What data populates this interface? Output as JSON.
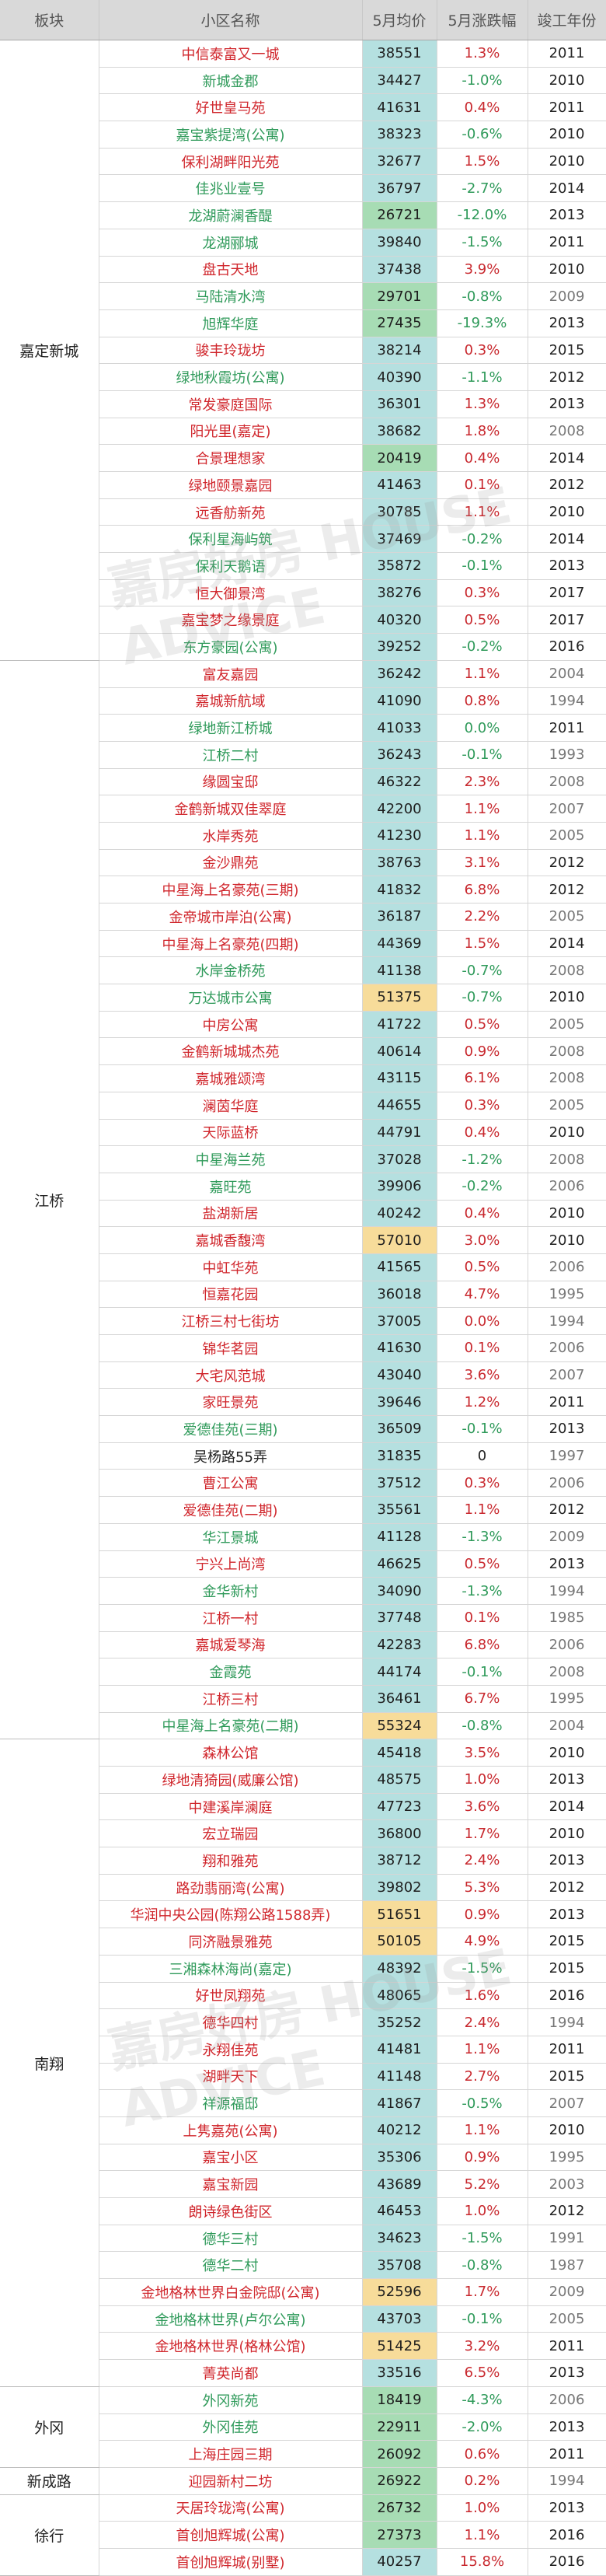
{
  "table": {
    "headers": [
      "板块",
      "小区名称",
      "5月均价",
      "5月涨跌幅",
      "竣工年份"
    ],
    "blocks": [
      {
        "name": "嘉定新城",
        "rows": [
          {
            "name": "中信泰富又一城",
            "price": "38551",
            "change": "1.3%",
            "year": "2011"
          },
          {
            "name": "新城金郡",
            "price": "34427",
            "change": "-1.0%",
            "year": "2010"
          },
          {
            "name": "好世皇马苑",
            "price": "41631",
            "change": "0.4%",
            "year": "2011"
          },
          {
            "name": "嘉宝紫提湾(公寓)",
            "price": "38323",
            "change": "-0.6%",
            "year": "2010"
          },
          {
            "name": "保利湖畔阳光苑",
            "price": "32677",
            "change": "1.5%",
            "year": "2010"
          },
          {
            "name": "佳兆业壹号",
            "price": "36797",
            "change": "-2.7%",
            "year": "2014"
          },
          {
            "name": "龙湖蔚澜香醍",
            "price": "26721",
            "change": "-12.0%",
            "year": "2013"
          },
          {
            "name": "龙湖郦城",
            "price": "39840",
            "change": "-1.5%",
            "year": "2011"
          },
          {
            "name": "盘古天地",
            "price": "37438",
            "change": "3.9%",
            "year": "2010"
          },
          {
            "name": "马陆清水湾",
            "price": "29701",
            "change": "-0.8%",
            "year": "2009"
          },
          {
            "name": "旭辉华庭",
            "price": "27435",
            "change": "-19.3%",
            "year": "2013"
          },
          {
            "name": "骏丰玲珑坊",
            "price": "38214",
            "change": "0.3%",
            "year": "2015"
          },
          {
            "name": "绿地秋霞坊(公寓)",
            "price": "40390",
            "change": "-1.1%",
            "year": "2012"
          },
          {
            "name": "常发豪庭国际",
            "price": "36301",
            "change": "1.3%",
            "year": "2013"
          },
          {
            "name": "阳光里(嘉定)",
            "price": "38682",
            "change": "1.8%",
            "year": "2008"
          },
          {
            "name": "合景理想家",
            "price": "20419",
            "change": "0.4%",
            "year": "2014"
          },
          {
            "name": "绿地颐景嘉园",
            "price": "41463",
            "change": "0.1%",
            "year": "2012"
          },
          {
            "name": "远香舫新苑",
            "price": "30785",
            "change": "1.1%",
            "year": "2010"
          },
          {
            "name": "保利星海屿筑",
            "price": "37469",
            "change": "-0.2%",
            "year": "2014"
          },
          {
            "name": "保利天鹅语",
            "price": "35872",
            "change": "-0.1%",
            "year": "2013"
          },
          {
            "name": "恒大御景湾",
            "price": "38276",
            "change": "0.3%",
            "year": "2017"
          },
          {
            "name": "嘉宝梦之缘景庭",
            "price": "40320",
            "change": "0.5%",
            "year": "2017"
          },
          {
            "name": "东方豪园(公寓)",
            "price": "39252",
            "change": "-0.2%",
            "year": "2016"
          }
        ]
      },
      {
        "name": "江桥",
        "rows": [
          {
            "name": "富友嘉园",
            "price": "36242",
            "change": "1.1%",
            "year": "2004"
          },
          {
            "name": "嘉城新航域",
            "price": "41090",
            "change": "0.8%",
            "year": "1994"
          },
          {
            "name": "绿地新江桥城",
            "price": "41033",
            "change": "0.0%",
            "year": "2011"
          },
          {
            "name": "江桥二村",
            "price": "36243",
            "change": "-0.1%",
            "year": "1993"
          },
          {
            "name": "缘圆宝邸",
            "price": "46322",
            "change": "2.3%",
            "year": "2008"
          },
          {
            "name": "金鹤新城双佳翠庭",
            "price": "42200",
            "change": "1.1%",
            "year": "2007"
          },
          {
            "name": "水岸秀苑",
            "price": "41230",
            "change": "1.1%",
            "year": "2005"
          },
          {
            "name": "金沙鼎苑",
            "price": "38763",
            "change": "3.1%",
            "year": "2012"
          },
          {
            "name": "中星海上名豪苑(三期)",
            "price": "41832",
            "change": "6.8%",
            "year": "2012"
          },
          {
            "name": "金帝城市岸泊(公寓)",
            "price": "36187",
            "change": "2.2%",
            "year": "2005"
          },
          {
            "name": "中星海上名豪苑(四期)",
            "price": "44369",
            "change": "1.5%",
            "year": "2014"
          },
          {
            "name": "水岸金桥苑",
            "price": "41138",
            "change": "-0.7%",
            "year": "2008"
          },
          {
            "name": "万达城市公寓",
            "price": "51375",
            "change": "-0.7%",
            "year": "2010"
          },
          {
            "name": "中房公寓",
            "price": "41722",
            "change": "0.5%",
            "year": "2005"
          },
          {
            "name": "金鹤新城城杰苑",
            "price": "40614",
            "change": "0.9%",
            "year": "2008"
          },
          {
            "name": "嘉城雅颂湾",
            "price": "43115",
            "change": "6.1%",
            "year": "2008"
          },
          {
            "name": "澜茵华庭",
            "price": "44655",
            "change": "0.3%",
            "year": "2005"
          },
          {
            "name": "天际蓝桥",
            "price": "44791",
            "change": "0.4%",
            "year": "2010"
          },
          {
            "name": "中星海兰苑",
            "price": "37028",
            "change": "-1.2%",
            "year": "2008"
          },
          {
            "name": "嘉旺苑",
            "price": "39906",
            "change": "-0.2%",
            "year": "2006"
          },
          {
            "name": "盐湖新居",
            "price": "40242",
            "change": "0.4%",
            "year": "2010"
          },
          {
            "name": "嘉城香馥湾",
            "price": "57010",
            "change": "3.0%",
            "year": "2010"
          },
          {
            "name": "中虹华苑",
            "price": "41565",
            "change": "0.5%",
            "year": "2006"
          },
          {
            "name": "恒嘉花园",
            "price": "36018",
            "change": "4.7%",
            "year": "1995"
          },
          {
            "name": "江桥三村七街坊",
            "price": "37005",
            "change": "0.0%",
            "year": "1994"
          },
          {
            "name": "锦华茗园",
            "price": "41630",
            "change": "0.1%",
            "year": "2006"
          },
          {
            "name": "大宅风范城",
            "price": "43040",
            "change": "3.6%",
            "year": "2007"
          },
          {
            "name": "家旺景苑",
            "price": "39646",
            "change": "1.2%",
            "year": "2011"
          },
          {
            "name": "爱德佳苑(三期)",
            "price": "36509",
            "change": "-0.1%",
            "year": "2013"
          },
          {
            "name": "吴杨路55弄",
            "price": "31835",
            "change": "0",
            "year": "1997"
          },
          {
            "name": "曹江公寓",
            "price": "37512",
            "change": "0.3%",
            "year": "2006"
          },
          {
            "name": "爱德佳苑(二期)",
            "price": "35561",
            "change": "1.1%",
            "year": "2012"
          },
          {
            "name": "华江景城",
            "price": "41128",
            "change": "-1.3%",
            "year": "2009"
          },
          {
            "name": "宁兴上尚湾",
            "price": "46625",
            "change": "0.5%",
            "year": "2013"
          },
          {
            "name": "金华新村",
            "price": "34090",
            "change": "-1.3%",
            "year": "1994"
          },
          {
            "name": "江桥一村",
            "price": "37748",
            "change": "0.1%",
            "year": "1985"
          },
          {
            "name": "嘉城爱琴海",
            "price": "42283",
            "change": "6.8%",
            "year": "2006"
          },
          {
            "name": "金霞苑",
            "price": "44174",
            "change": "-0.1%",
            "year": "2008"
          },
          {
            "name": "江桥三村",
            "price": "36461",
            "change": "6.7%",
            "year": "1995"
          },
          {
            "name": "中星海上名豪苑(二期)",
            "price": "55324",
            "change": "-0.8%",
            "year": "2004"
          }
        ]
      },
      {
        "name": "南翔",
        "rows": [
          {
            "name": "森林公馆",
            "price": "45418",
            "change": "3.5%",
            "year": "2010"
          },
          {
            "name": "绿地清猗园(威廉公馆)",
            "price": "48575",
            "change": "1.0%",
            "year": "2013"
          },
          {
            "name": "中建溪岸澜庭",
            "price": "47723",
            "change": "3.6%",
            "year": "2014"
          },
          {
            "name": "宏立瑞园",
            "price": "36800",
            "change": "1.7%",
            "year": "2010"
          },
          {
            "name": "翔和雅苑",
            "price": "38712",
            "change": "2.4%",
            "year": "2013"
          },
          {
            "name": "路劲翡丽湾(公寓)",
            "price": "39802",
            "change": "5.3%",
            "year": "2012"
          },
          {
            "name": "华润中央公园(陈翔公路1588弄)",
            "price": "51651",
            "change": "0.9%",
            "year": "2013"
          },
          {
            "name": "同济融景雅苑",
            "price": "50105",
            "change": "4.9%",
            "year": "2015"
          },
          {
            "name": "三湘森林海尚(嘉定)",
            "price": "48392",
            "change": "-1.5%",
            "year": "2015"
          },
          {
            "name": "好世凤翔苑",
            "price": "48065",
            "change": "1.6%",
            "year": "2016"
          },
          {
            "name": "德华四村",
            "price": "35252",
            "change": "2.4%",
            "year": "1994"
          },
          {
            "name": "永翔佳苑",
            "price": "41481",
            "change": "1.1%",
            "year": "2011"
          },
          {
            "name": "湖畔天下",
            "price": "41148",
            "change": "2.7%",
            "year": "2015"
          },
          {
            "name": "祥源福邸",
            "price": "41867",
            "change": "-0.5%",
            "year": "2007"
          },
          {
            "name": "上隽嘉苑(公寓)",
            "price": "40212",
            "change": "1.1%",
            "year": "2010"
          },
          {
            "name": "嘉宝小区",
            "price": "35306",
            "change": "0.9%",
            "year": "1995"
          },
          {
            "name": "嘉宝新园",
            "price": "43689",
            "change": "5.2%",
            "year": "2003"
          },
          {
            "name": "朗诗绿色街区",
            "price": "46453",
            "change": "1.0%",
            "year": "2012"
          },
          {
            "name": "德华三村",
            "price": "34623",
            "change": "-1.5%",
            "year": "1991"
          },
          {
            "name": "德华二村",
            "price": "35708",
            "change": "-0.8%",
            "year": "1987"
          },
          {
            "name": "金地格林世界白金院邸(公寓)",
            "price": "52596",
            "change": "1.7%",
            "year": "2009"
          },
          {
            "name": "金地格林世界(卢尔公寓)",
            "price": "43703",
            "change": "-0.1%",
            "year": "2005"
          },
          {
            "name": "金地格林世界(格林公馆)",
            "price": "51425",
            "change": "3.2%",
            "year": "2011"
          },
          {
            "name": "菁英尚都",
            "price": "33516",
            "change": "6.5%",
            "year": "2013"
          }
        ]
      },
      {
        "name": "外冈",
        "rows": [
          {
            "name": "外冈新苑",
            "price": "18419",
            "change": "-4.3%",
            "year": "2006"
          },
          {
            "name": "外冈佳苑",
            "price": "22911",
            "change": "-2.0%",
            "year": "2013"
          },
          {
            "name": "上海庄园三期",
            "price": "26092",
            "change": "0.6%",
            "year": "2011"
          }
        ]
      },
      {
        "name": "新成路",
        "rows": [
          {
            "name": "迎园新村二坊",
            "price": "26922",
            "change": "0.2%",
            "year": "1994"
          }
        ]
      },
      {
        "name": "徐行",
        "rows": [
          {
            "name": "天居玲珑湾(公寓)",
            "price": "26732",
            "change": "1.0%",
            "year": "2013"
          },
          {
            "name": "首创旭辉城(公寓)",
            "price": "27373",
            "change": "1.1%",
            "year": "2016"
          },
          {
            "name": "首创旭辉城(别墅)",
            "price": "40257",
            "change": "15.8%",
            "year": "2016"
          }
        ]
      }
    ]
  },
  "watermark": {
    "cn": "嘉房好房",
    "en": "HOUSE ADVICE"
  },
  "colors": {
    "up": "#d0262c",
    "down": "#2f9a5a",
    "price_bg": "#b5e0e0",
    "price_low_bg": "#a7dcb4",
    "price_high_bg": "#f7dc9a",
    "header_bg": "#d9d9d9"
  }
}
